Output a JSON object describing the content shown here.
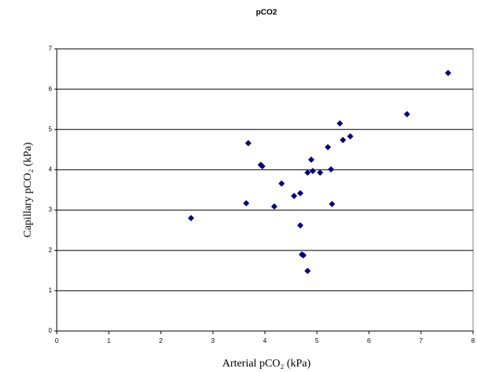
{
  "chart_data": {
    "type": "scatter",
    "title": "pCO2",
    "x_label": "Arterial  pCO₂ (kPa)",
    "y_label": "Capillary  pCO₂ (kPa)",
    "xlim": [
      0,
      8
    ],
    "xticks": [
      0,
      1,
      2,
      3,
      4,
      5,
      6,
      7,
      8
    ],
    "ylim": [
      0,
      7
    ],
    "yticks": [
      0,
      1,
      2,
      3,
      4,
      5,
      6,
      7
    ],
    "grid": true,
    "color": "#000080",
    "x": [
      2.58,
      3.64,
      3.68,
      3.92,
      3.95,
      4.32,
      4.18,
      4.56,
      4.68,
      4.68,
      4.71,
      4.74,
      4.82,
      4.82,
      4.89,
      4.92,
      5.06,
      5.21,
      5.27,
      5.29,
      5.44,
      5.5,
      5.64,
      6.73,
      7.52
    ],
    "y": [
      2.8,
      3.17,
      4.66,
      4.12,
      4.09,
      3.66,
      3.09,
      3.35,
      3.42,
      2.62,
      1.9,
      1.88,
      1.49,
      3.93,
      4.25,
      3.97,
      3.93,
      4.56,
      4.01,
      3.15,
      5.15,
      4.74,
      4.83,
      5.38,
      6.4
    ]
  }
}
